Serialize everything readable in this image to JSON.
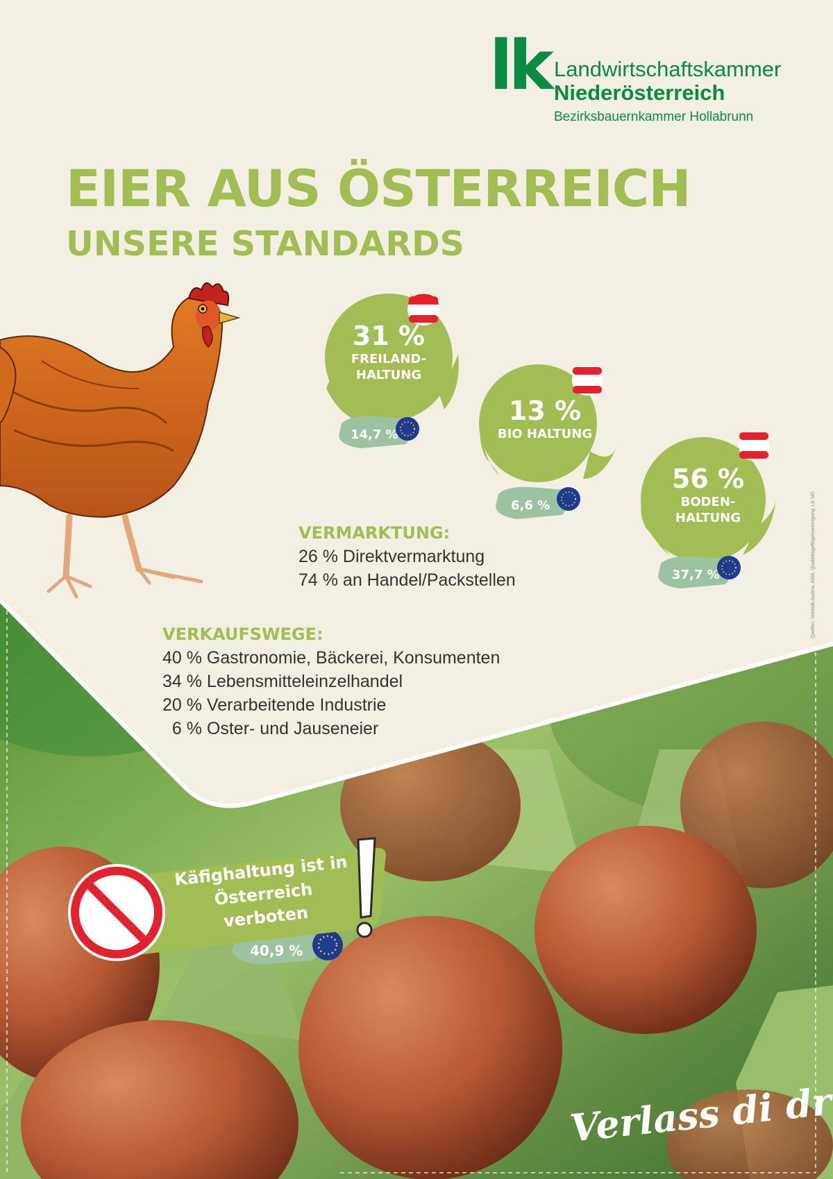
{
  "logo": {
    "mark": "lk",
    "line1": "Landwirtschaftskammer",
    "line2": "Niederösterreich",
    "line3": "Bezirksbauernkammer Hollabrunn"
  },
  "title": "EIER AUS ÖSTERREICH",
  "subtitle": "UNSERE STANDARDS",
  "stats": {
    "freiland": {
      "value": "31 %",
      "label_lines": [
        "FREILAND-",
        "HALTUNG"
      ],
      "eu_value": "14,7 %"
    },
    "bio": {
      "value": "13 %",
      "label_lines": [
        "BIO HALTUNG"
      ],
      "eu_value": "6,6 %"
    },
    "boden": {
      "value": "56 %",
      "label_lines": [
        "BODEN-",
        "HALTUNG"
      ],
      "eu_value": "37,7 %"
    }
  },
  "vermarktung": {
    "heading": "VERMARKTUNG:",
    "items": [
      "26 % Direktvermarktung",
      "74 % an Handel/Packstellen"
    ]
  },
  "verkaufswege": {
    "heading": "VERKAUFSWEGE:",
    "items": [
      "40 % Gastronomie, Bäckerei, Konsumenten",
      "34 % Lebensmitteleinzelhandel",
      "20 % Verarbeitende Industrie",
      "  6 % Oster- und Jauseneier"
    ]
  },
  "ban": {
    "line1": "Käfighaltung ist in",
    "line2": "Österreich verboten",
    "eu_value": "40,9 %"
  },
  "source_note": "Quellen: Statistik Austria, AMA, Qualitätsgeflügelvereinigung, LK NÖ",
  "slogan": "Verlass di drauf!",
  "icons": {
    "hen": "hen-illustration",
    "austria_flag": "austria-flag-icon",
    "eu_flag": "eu-flag-icon",
    "prohibited": "prohibited-sign-icon",
    "exclamation": "exclamation-icon"
  },
  "colors": {
    "accent_green": "#a3bd55",
    "logo_green": "#0a8a42",
    "eu_pill": "#9dc2a2",
    "background": "#f3efe3"
  }
}
